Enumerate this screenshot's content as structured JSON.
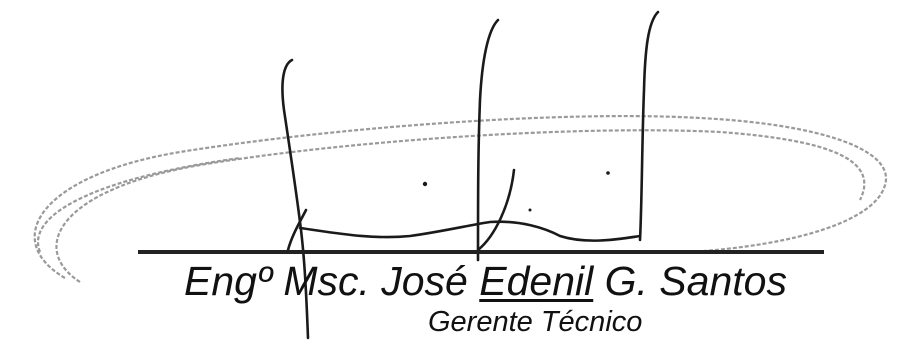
{
  "signature": {
    "name_prefix": "Engº Msc. José ",
    "name_underlined": "Edenil",
    "name_suffix": " G. Santos",
    "title": "Gerente Técnico"
  },
  "colors": {
    "ink": "#111111",
    "loop": "#9a9a9a",
    "background": "#ffffff"
  }
}
